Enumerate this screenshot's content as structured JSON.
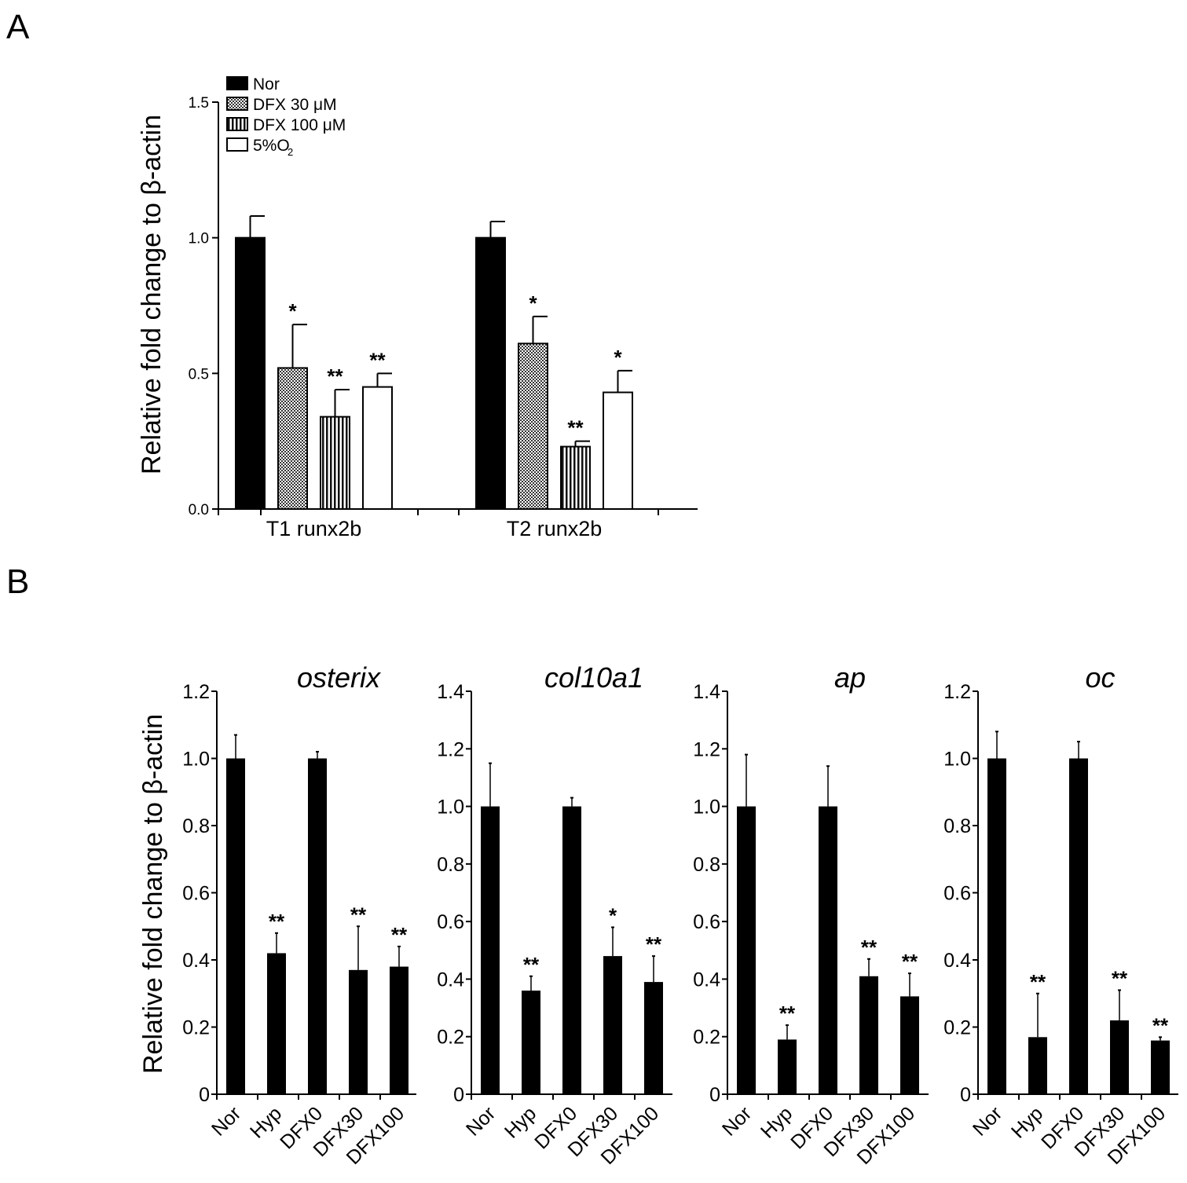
{
  "panel_a": {
    "letter": "A",
    "legend": [
      {
        "label": "Nor",
        "fill": "solid"
      },
      {
        "label": "DFX 30 μM",
        "fill": "crosshatch"
      },
      {
        "label": "DFX 100 μM",
        "fill": "vertical"
      },
      {
        "label_main": "5%O",
        "label_sub": "2",
        "fill": "white"
      }
    ]
  },
  "panel_b": {
    "letter": "B"
  },
  "chart_data": [
    {
      "type": "bar",
      "panel": "A",
      "title": "",
      "ylabel": "Relative fold change to β-actin",
      "ylim": [
        0,
        1.5
      ],
      "yticks": [
        "0.0",
        "0.5",
        "1.0",
        "1.5"
      ],
      "categories": [
        "T1 runx2b",
        "T2 runx2b"
      ],
      "series": [
        {
          "name": "Nor",
          "values": [
            1.0,
            1.0
          ],
          "errors": [
            0.08,
            0.06
          ],
          "significance": [
            "",
            ""
          ]
        },
        {
          "name": "DFX 30 μM",
          "values": [
            0.52,
            0.61
          ],
          "errors": [
            0.16,
            0.1
          ],
          "significance": [
            "*",
            "*"
          ]
        },
        {
          "name": "DFX 100 μM",
          "values": [
            0.34,
            0.23
          ],
          "errors": [
            0.1,
            0.02
          ],
          "significance": [
            "**",
            "**"
          ]
        },
        {
          "name": "5%O2",
          "values": [
            0.45,
            0.43
          ],
          "errors": [
            0.05,
            0.08
          ],
          "significance": [
            "**",
            "*"
          ]
        }
      ]
    },
    {
      "type": "bar",
      "panel": "B",
      "title": "osterix",
      "ylabel": "Relative fold change to β-actin",
      "ylim": [
        0,
        1.2
      ],
      "yticks": [
        "0",
        "0.2",
        "0.4",
        "0.6",
        "0.8",
        "1.0",
        "1.2"
      ],
      "categories": [
        "Nor",
        "Hyp",
        "DFX0",
        "DFX30",
        "DFX100"
      ],
      "values": [
        1.0,
        0.42,
        1.0,
        0.37,
        0.38
      ],
      "errors": [
        0.07,
        0.06,
        0.02,
        0.13,
        0.06
      ],
      "significance": [
        "",
        "**",
        "",
        "**",
        "**"
      ]
    },
    {
      "type": "bar",
      "panel": "B",
      "title": "col10a1",
      "ylim": [
        0,
        1.4
      ],
      "yticks": [
        "0",
        "0.2",
        "0.4",
        "0.6",
        "0.8",
        "1.0",
        "1.2",
        "1.4"
      ],
      "categories": [
        "Nor",
        "Hyp",
        "DFX0",
        "DFX30",
        "DFX100"
      ],
      "values": [
        1.0,
        0.36,
        1.0,
        0.48,
        0.39
      ],
      "errors": [
        0.15,
        0.05,
        0.03,
        0.1,
        0.09
      ],
      "significance": [
        "",
        "**",
        "",
        "*",
        "**"
      ]
    },
    {
      "type": "bar",
      "panel": "B",
      "title": "ap",
      "ylim": [
        0,
        1.4
      ],
      "yticks": [
        "0",
        "0.2",
        "0.4",
        "0.6",
        "0.8",
        "1.0",
        "1.2",
        "1.4"
      ],
      "categories": [
        "Nor",
        "Hyp",
        "DFX0",
        "DFX30",
        "DFX100"
      ],
      "values": [
        1.0,
        0.19,
        1.0,
        0.41,
        0.34
      ],
      "errors": [
        0.18,
        0.05,
        0.14,
        0.06,
        0.08
      ],
      "significance": [
        "",
        "**",
        "",
        "**",
        "**"
      ]
    },
    {
      "type": "bar",
      "panel": "B",
      "title": "oc",
      "ylim": [
        0,
        1.2
      ],
      "yticks": [
        "0",
        "0.2",
        "0.4",
        "0.6",
        "0.8",
        "1.0",
        "1.2"
      ],
      "categories": [
        "Nor",
        "Hyp",
        "DFX0",
        "DFX30",
        "DFX100"
      ],
      "values": [
        1.0,
        0.17,
        1.0,
        0.22,
        0.16
      ],
      "errors": [
        0.08,
        0.13,
        0.05,
        0.09,
        0.01
      ],
      "significance": [
        "",
        "**",
        "",
        "**",
        "**"
      ]
    }
  ]
}
